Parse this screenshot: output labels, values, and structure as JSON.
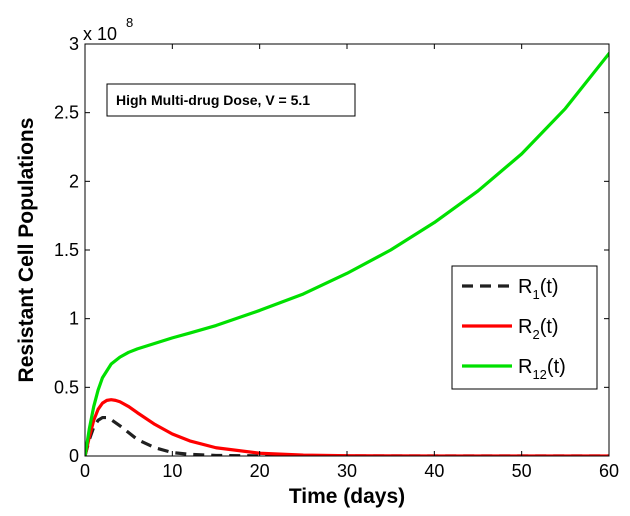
{
  "chart_data": {
    "type": "line",
    "title": "",
    "xlabel": "Time (days)",
    "ylabel": "Resistant Cell Populations",
    "xlim": [
      0,
      60
    ],
    "ylim": [
      0,
      3
    ],
    "y_multiplier": {
      "base": "x 10",
      "exponent": "8"
    },
    "xticks": [
      0,
      10,
      20,
      30,
      40,
      50,
      60
    ],
    "yticks": [
      0,
      0.5,
      1,
      1.5,
      2,
      2.5,
      3
    ],
    "ytick_labels": [
      "0",
      "0.5",
      "1",
      "1.5",
      "2",
      "2.5",
      "3"
    ],
    "grid": false,
    "legend_position": "middle-right",
    "annotation": "High Multi-drug Dose, V = 5.1",
    "series": [
      {
        "name": "R1(t)",
        "legend_main": "R",
        "legend_sub": "1",
        "legend_tail": "(t)",
        "color": "#202020",
        "dash": "dashed",
        "x": [
          0,
          0.5,
          1,
          1.5,
          2,
          2.5,
          3,
          4,
          5,
          6,
          8,
          10,
          12,
          15,
          20,
          25,
          30,
          40,
          50,
          60
        ],
        "y": [
          0,
          0.12,
          0.21,
          0.26,
          0.28,
          0.28,
          0.265,
          0.22,
          0.17,
          0.12,
          0.06,
          0.025,
          0.012,
          0.004,
          0.001,
          0,
          0,
          0,
          0,
          0
        ]
      },
      {
        "name": "R2(t)",
        "legend_main": "R",
        "legend_sub": "2",
        "legend_tail": "(t)",
        "color": "#ff0000",
        "dash": "solid",
        "x": [
          0,
          0.5,
          1,
          1.5,
          2,
          2.5,
          3,
          3.5,
          4,
          5,
          6,
          8,
          10,
          12,
          15,
          20,
          25,
          30,
          40,
          50,
          60
        ],
        "y": [
          0,
          0.14,
          0.26,
          0.34,
          0.385,
          0.405,
          0.41,
          0.405,
          0.395,
          0.36,
          0.315,
          0.23,
          0.16,
          0.11,
          0.06,
          0.02,
          0.007,
          0.002,
          0,
          0,
          0
        ]
      },
      {
        "name": "R12(t)",
        "legend_main": "R",
        "legend_sub": "12",
        "legend_tail": "(t)",
        "color": "#00e000",
        "dash": "solid",
        "x": [
          0,
          0.5,
          1,
          1.5,
          2,
          3,
          4,
          5,
          6,
          8,
          10,
          12,
          15,
          20,
          25,
          30,
          35,
          40,
          45,
          50,
          55,
          60
        ],
        "y": [
          0,
          0.2,
          0.36,
          0.48,
          0.57,
          0.67,
          0.72,
          0.755,
          0.78,
          0.82,
          0.86,
          0.895,
          0.95,
          1.06,
          1.18,
          1.33,
          1.5,
          1.7,
          1.93,
          2.2,
          2.53,
          2.93
        ]
      }
    ]
  }
}
